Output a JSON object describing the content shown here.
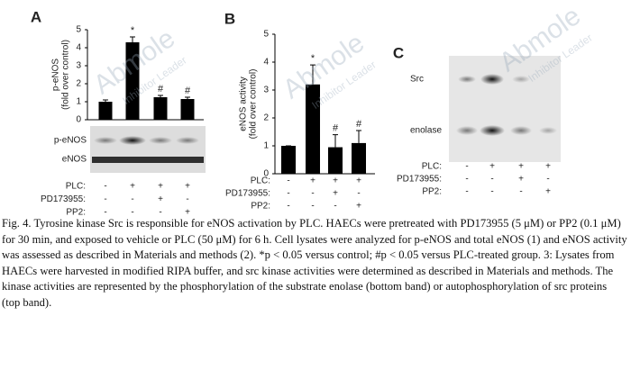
{
  "chart_data": [
    {
      "type": "bar",
      "panel": "A",
      "ylabel": [
        "p-eNOS",
        "(fold over control)"
      ],
      "values": [
        1,
        4.3,
        1.25,
        1.15
      ],
      "errors": [
        0.1,
        0.3,
        0.1,
        0.1
      ],
      "value_annotations": [
        null,
        "*",
        "#",
        "#"
      ],
      "color": "#000000",
      "ylim": [
        0,
        5
      ],
      "yticks": [
        0,
        1,
        2,
        3,
        4,
        5
      ],
      "treatments": [
        {
          "name": "PLC:",
          "signs": [
            "-",
            "+",
            "+",
            "+"
          ]
        },
        {
          "name": "PD173955:",
          "signs": [
            "-",
            "-",
            "+",
            "-"
          ]
        },
        {
          "name": "PP2:",
          "signs": [
            "-",
            "-",
            "-",
            "+"
          ]
        }
      ]
    },
    {
      "type": "bar",
      "panel": "B",
      "ylabel": [
        "eNOS activity",
        "(fold over control)"
      ],
      "values": [
        1,
        3.2,
        0.95,
        1.1
      ],
      "errors": [
        0,
        0.7,
        0.45,
        0.45
      ],
      "value_annotations": [
        null,
        "*",
        "#",
        "#"
      ],
      "color": "#000000",
      "ylim": [
        0,
        5
      ],
      "yticks": [
        0,
        1,
        2,
        3,
        4,
        5
      ],
      "treatments": [
        {
          "name": "PLC:",
          "signs": [
            "-",
            "+",
            "+",
            "+"
          ]
        },
        {
          "name": "PD173955:",
          "signs": [
            "-",
            "-",
            "+",
            "-"
          ]
        },
        {
          "name": "PP2:",
          "signs": [
            "-",
            "-",
            "-",
            "+"
          ]
        }
      ]
    }
  ],
  "blot_a": {
    "bands": [
      "p-eNOS",
      "eNOS"
    ]
  },
  "blot_c": {
    "panel": "C",
    "bands": [
      "Src",
      "enolase"
    ],
    "treatments": [
      {
        "name": "PLC:",
        "signs": [
          "-",
          "+",
          "+",
          "+"
        ]
      },
      {
        "name": "PD173955:",
        "signs": [
          "-",
          "-",
          "+",
          "-"
        ]
      },
      {
        "name": "PP2:",
        "signs": [
          "-",
          "-",
          "-",
          "+"
        ]
      }
    ]
  },
  "watermark": {
    "brand": "Abmole",
    "tagline": "Inhibitor Leader"
  },
  "caption": "Fig. 4. Tyrosine kinase Src is responsible for eNOS activation by PLC. HAECs were pretreated with PD173955 (5 μM) or PP2 (0.1 μM) for 30 min, and exposed to vehicle or PLC (50 μM) for 6 h. Cell lysates were analyzed for p-eNOS and total eNOS (1) and eNOS activity was assessed as described in Materials and methods (2). *p < 0.05 versus control; #p < 0.05 versus PLC-treated group. 3: Lysates from HAECs were harvested in modified RIPA buffer, and src kinase activities were determined as described in Materials and methods. The kinase activities are represented by the phosphorylation of the substrate enolase (bottom band) or autophosphorylation of src proteins (top band)."
}
